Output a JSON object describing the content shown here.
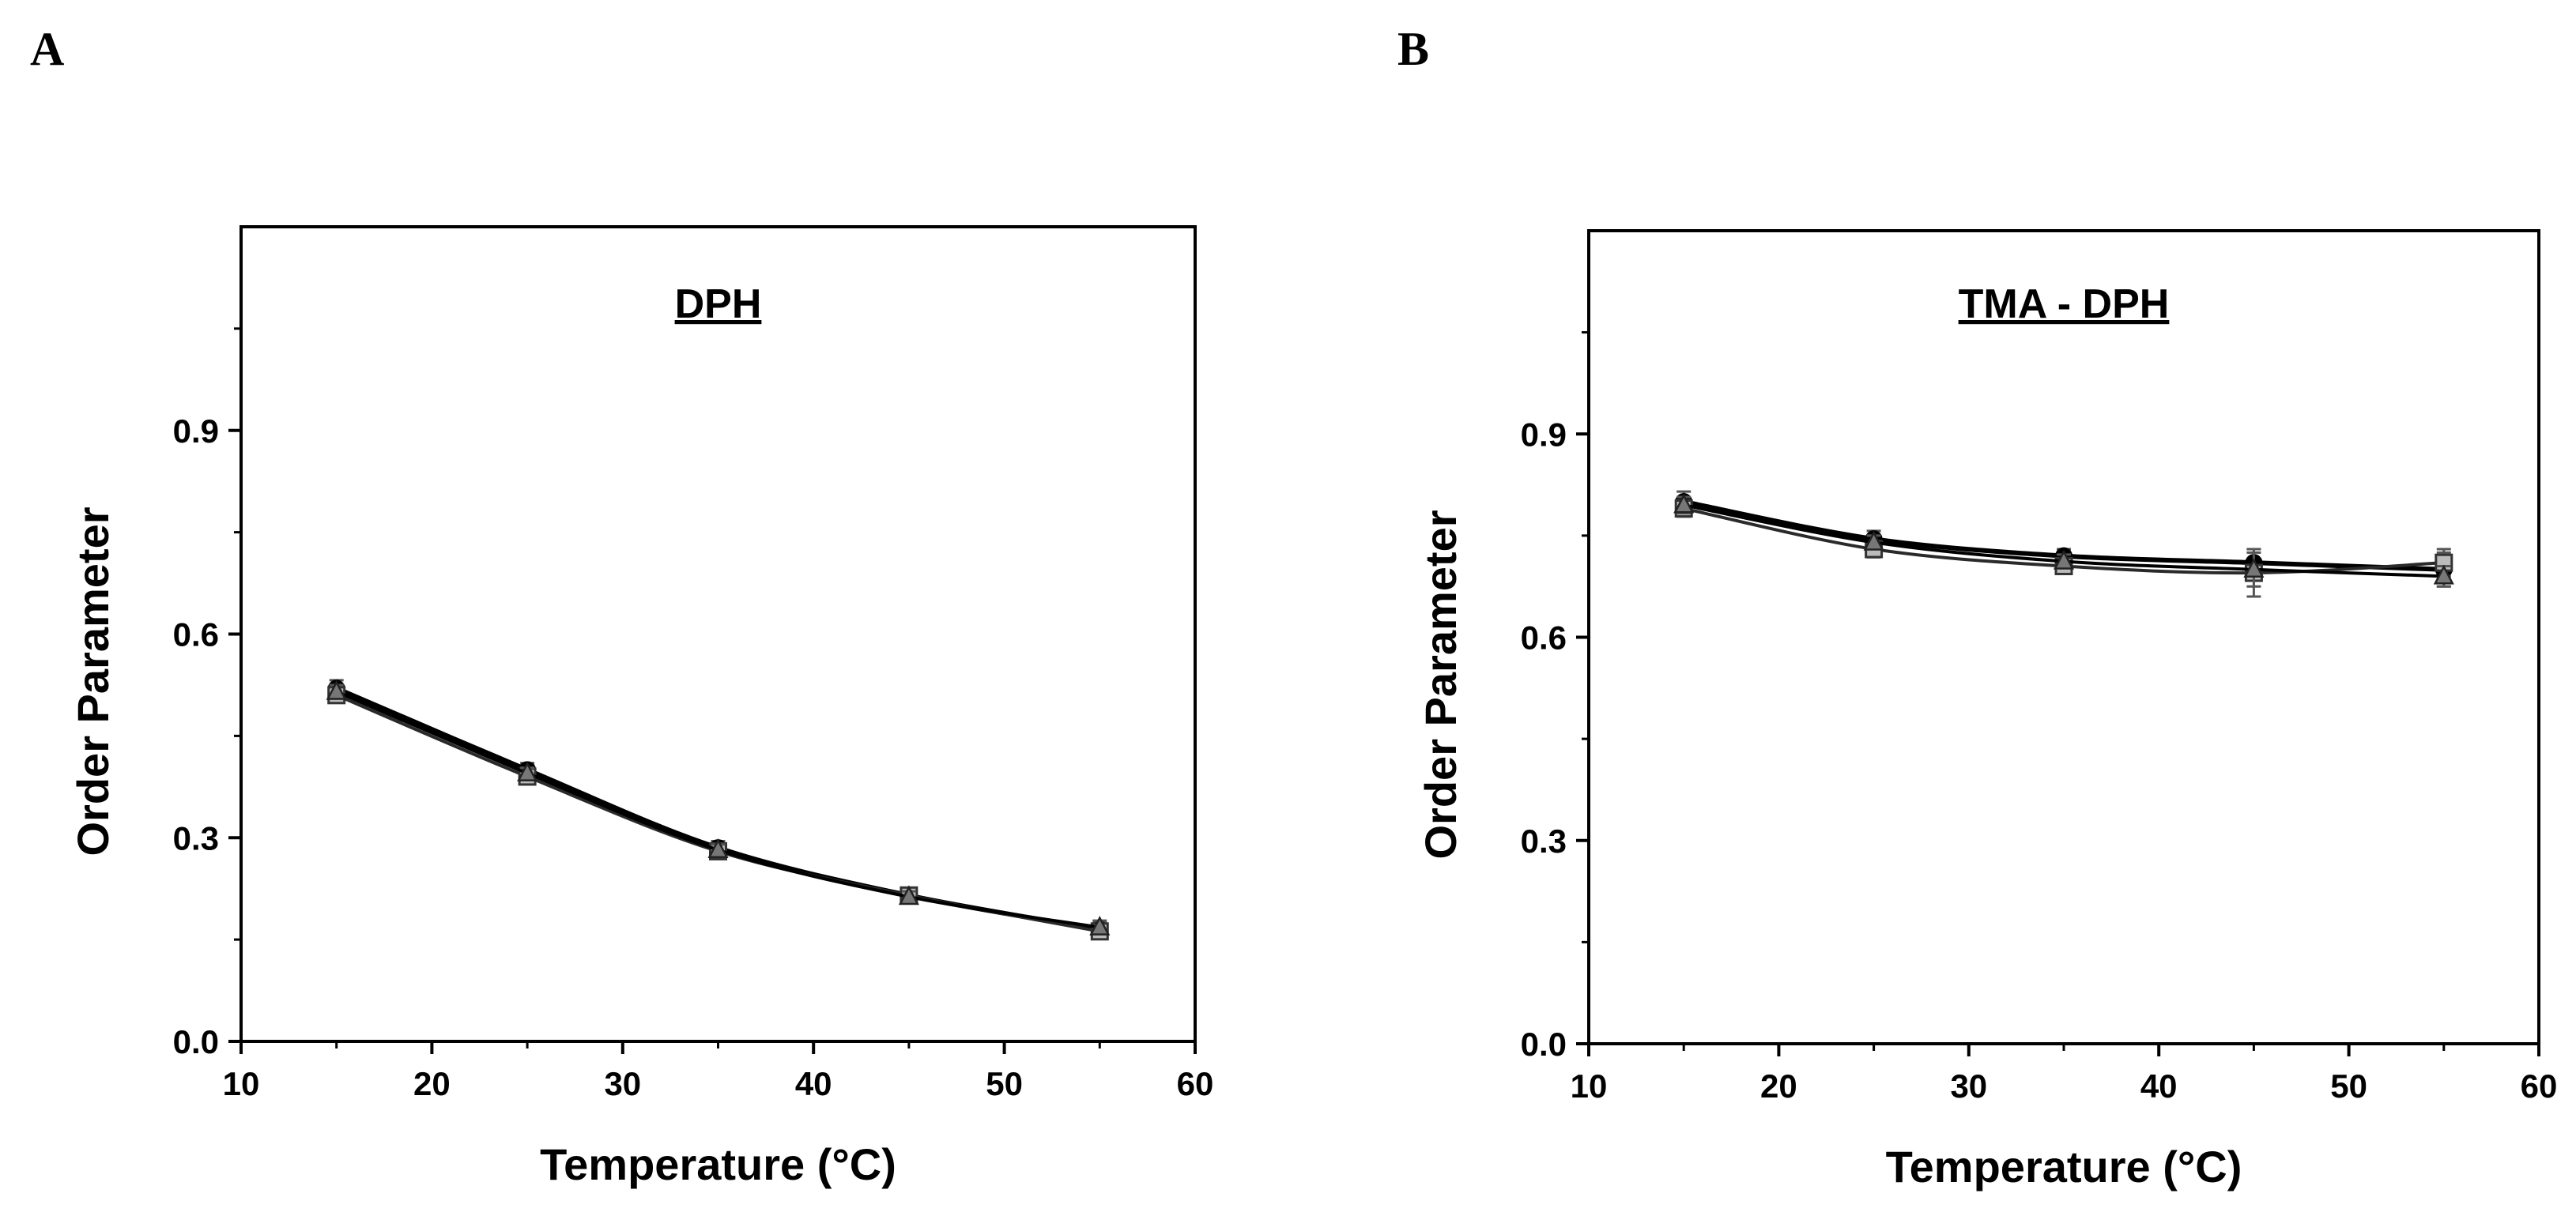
{
  "panels": [
    {
      "letter": "A"
    },
    {
      "letter": "B"
    }
  ],
  "chart_data": [
    {
      "type": "line",
      "title": "DPH",
      "xlabel": "Temperature (°C)",
      "ylabel": "Order Parameter",
      "xlim": [
        10,
        60
      ],
      "ylim": [
        0.0,
        1.2
      ],
      "xticks": [
        10,
        20,
        30,
        40,
        50,
        60
      ],
      "xtick_labels": [
        "10",
        "20",
        "30",
        "40",
        "50",
        "60"
      ],
      "yticks": [
        0.0,
        0.3,
        0.6,
        0.9
      ],
      "ytick_labels": [
        "0.0",
        "0.3",
        "0.6",
        "0.9"
      ],
      "grid": false,
      "legend": "none",
      "x": [
        15,
        25,
        35,
        45,
        55
      ],
      "series": [
        {
          "values": [
            0.52,
            0.4,
            0.285,
            0.215,
            0.165
          ],
          "errors": [
            0.012,
            0.01,
            0.01,
            0.008,
            0.01
          ],
          "marker": "circle"
        },
        {
          "values": [
            0.51,
            0.39,
            0.28,
            0.215,
            0.162
          ],
          "errors": [
            0.01,
            0.01,
            0.008,
            0.008,
            0.01
          ],
          "marker": "square"
        },
        {
          "values": [
            0.515,
            0.395,
            0.282,
            0.213,
            0.168
          ],
          "errors": [
            0.01,
            0.008,
            0.008,
            0.008,
            0.01
          ],
          "marker": "triangle"
        }
      ]
    },
    {
      "type": "line",
      "title": "TMA - DPH",
      "xlabel": "Temperature (°C)",
      "ylabel": "Order Parameter",
      "xlim": [
        10,
        60
      ],
      "ylim": [
        0.0,
        1.2
      ],
      "xticks": [
        10,
        20,
        30,
        40,
        50,
        60
      ],
      "xtick_labels": [
        "10",
        "20",
        "30",
        "40",
        "50",
        "60"
      ],
      "yticks": [
        0.0,
        0.3,
        0.6,
        0.9
      ],
      "ytick_labels": [
        "0.0",
        "0.3",
        "0.6",
        "0.9"
      ],
      "grid": false,
      "legend": "none",
      "x": [
        15,
        25,
        35,
        45,
        55
      ],
      "series": [
        {
          "values": [
            0.8,
            0.745,
            0.72,
            0.71,
            0.7
          ],
          "errors": [
            0.015,
            0.012,
            0.01,
            0.02,
            0.025
          ],
          "marker": "circle"
        },
        {
          "values": [
            0.79,
            0.73,
            0.705,
            0.695,
            0.71
          ],
          "errors": [
            0.012,
            0.012,
            0.01,
            0.035,
            0.02
          ],
          "marker": "square"
        },
        {
          "values": [
            0.795,
            0.74,
            0.712,
            0.7,
            0.69
          ],
          "errors": [
            0.012,
            0.01,
            0.01,
            0.025,
            0.015
          ],
          "marker": "triangle"
        }
      ]
    }
  ]
}
